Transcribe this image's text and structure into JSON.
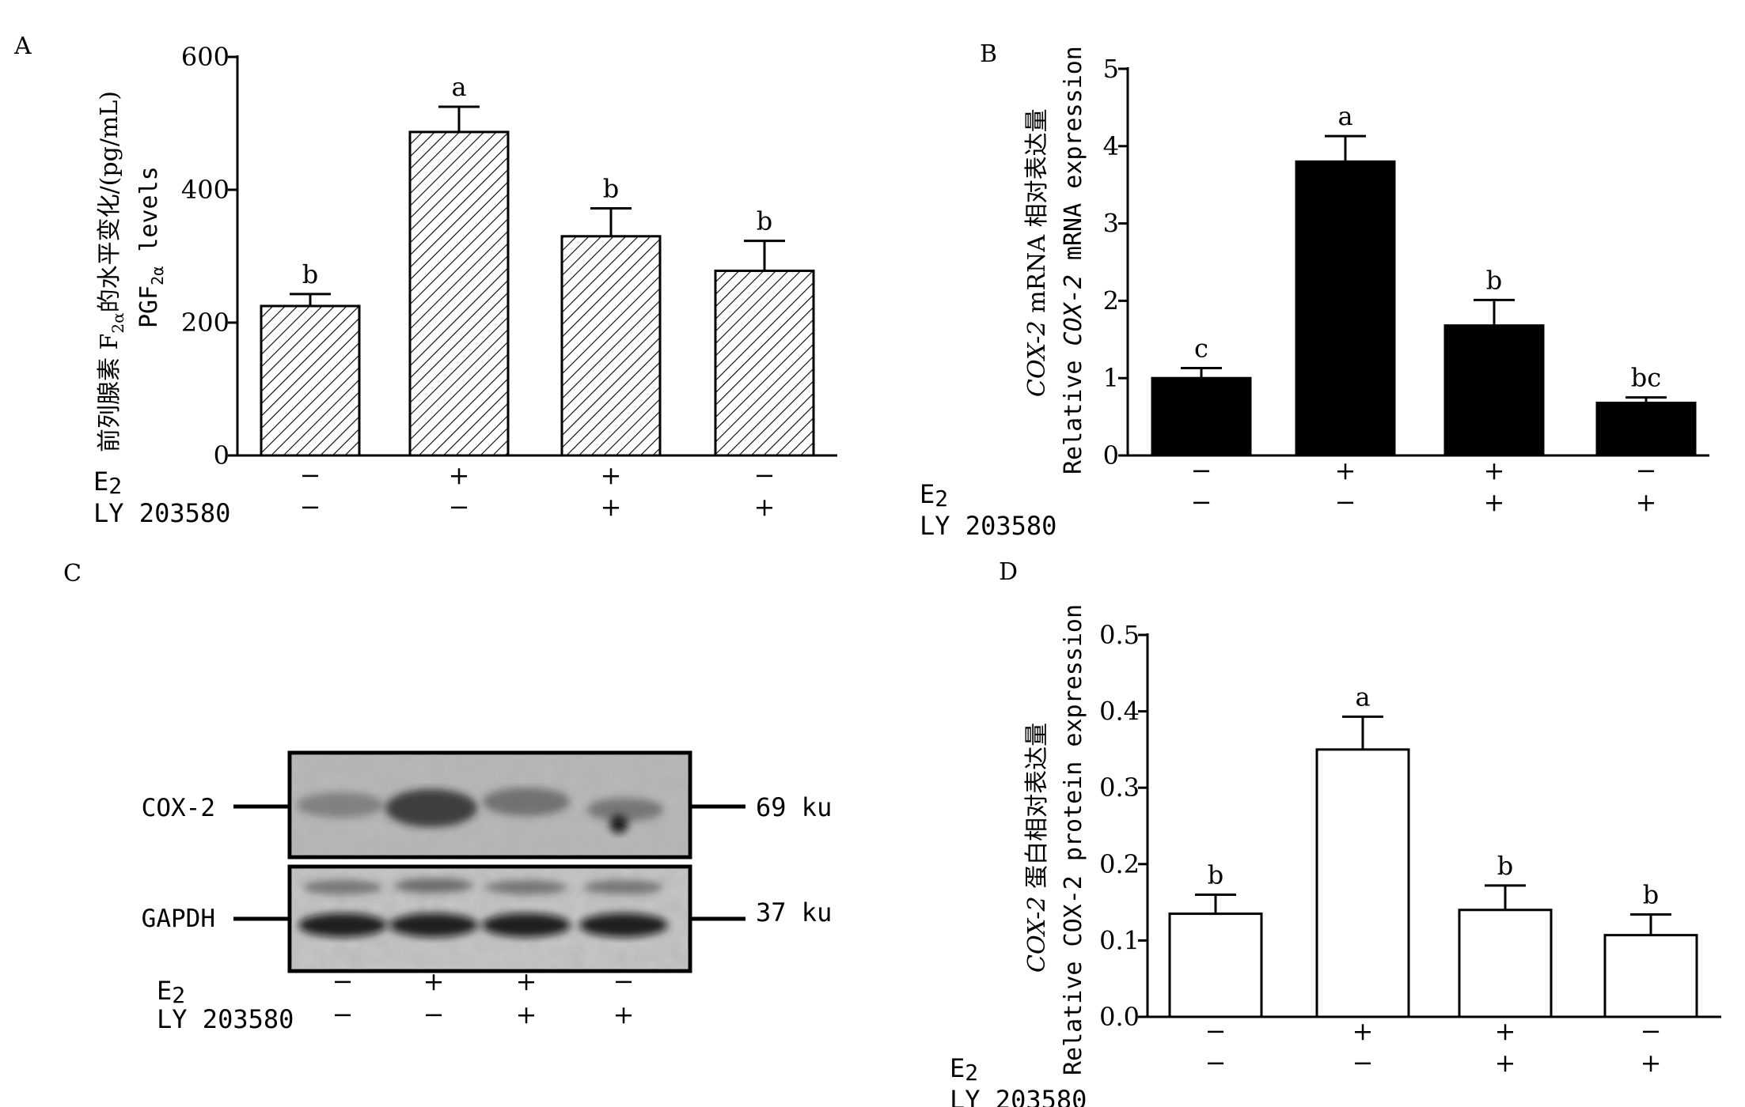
{
  "treatments": {
    "row1_label": "E2",
    "row2_label": "LY 203580",
    "row1": [
      "−",
      "+",
      "+",
      "−"
    ],
    "row2": [
      "−",
      "−",
      "+",
      "+"
    ]
  },
  "chart_data": [
    {
      "panel": "A",
      "type": "bar",
      "fill": "hatched",
      "ylabel_cn": "前列腺素 F2α的水平变化/(pg/mL)",
      "ylabel_en": "PGF2α levels",
      "yticks": [
        "0",
        "200",
        "400",
        "600"
      ],
      "ylim": [
        0,
        600
      ],
      "values": [
        225,
        487,
        330,
        278
      ],
      "errors": [
        18,
        38,
        42,
        45
      ],
      "letters": [
        "b",
        "a",
        "b",
        "b"
      ]
    },
    {
      "panel": "B",
      "type": "bar",
      "fill": "#000000",
      "ylabel_cn": "COX-2 mRNA 相对表达量",
      "ylabel_en": "Relative COX-2 mRNA expression",
      "yticks": [
        "0",
        "1",
        "2",
        "3",
        "4",
        "5"
      ],
      "ylim": [
        0,
        5
      ],
      "values": [
        1.0,
        3.8,
        1.68,
        0.68
      ],
      "errors": [
        0.13,
        0.33,
        0.33,
        0.07
      ],
      "letters": [
        "c",
        "a",
        "b",
        "bc"
      ]
    },
    {
      "panel": "D",
      "type": "bar",
      "fill": "#ffffff",
      "ylabel_cn": "COX-2 蛋白相对表达量",
      "ylabel_en": "Relative COX-2 protein expression",
      "yticks": [
        "0.0",
        "0.1",
        "0.2",
        "0.3",
        "0.4",
        "0.5"
      ],
      "ylim": [
        0,
        0.5
      ],
      "values": [
        0.135,
        0.35,
        0.14,
        0.107
      ],
      "errors": [
        0.025,
        0.043,
        0.032,
        0.027
      ],
      "letters": [
        "b",
        "a",
        "b",
        "b"
      ]
    }
  ],
  "blot": {
    "panel": "C",
    "rows": [
      {
        "name": "COX-2",
        "size": "69 ku"
      },
      {
        "name": "GAPDH",
        "size": "37 ku"
      }
    ]
  }
}
